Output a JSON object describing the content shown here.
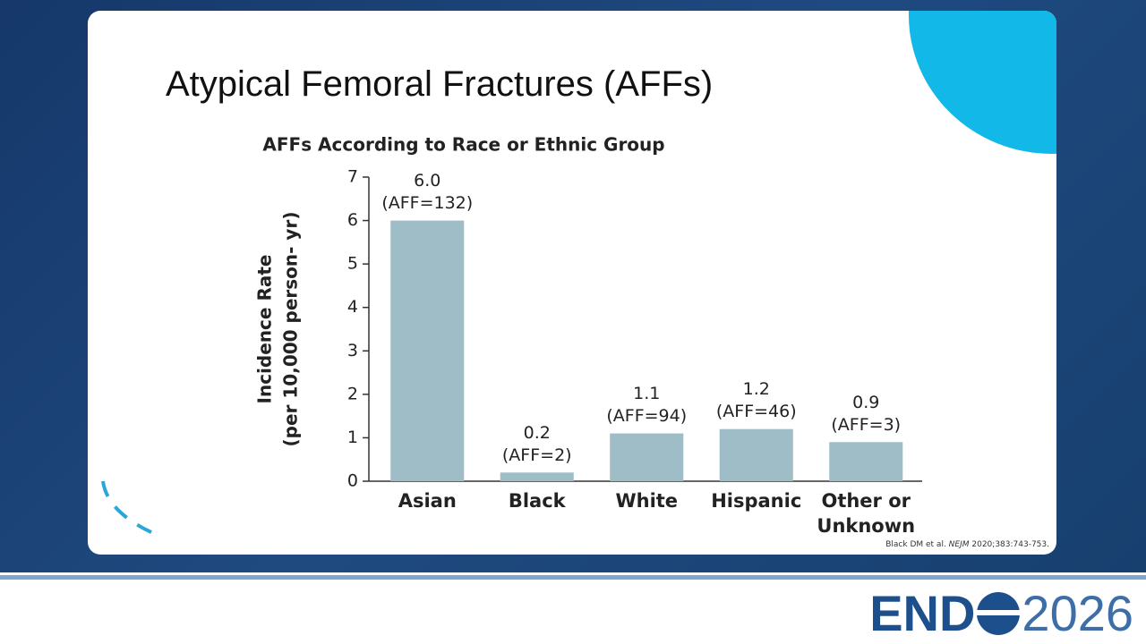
{
  "slide_title": "Atypical Femoral Fractures (AFFs)",
  "chart_data": {
    "type": "bar",
    "title": "AFFs According to Race or Ethnic Group",
    "ylabel": [
      "Incidence Rate",
      "(per 10,000 person- yr)"
    ],
    "categories": [
      "Asian",
      "Black",
      "White",
      "Hispanic",
      "Other or Unknown"
    ],
    "values": [
      6.0,
      0.2,
      1.1,
      1.2,
      0.9
    ],
    "value_labels": [
      "6.0",
      "0.2",
      "1.1",
      "1.2",
      "0.9"
    ],
    "annotations": [
      "(AFF=132)",
      "(AFF=2)",
      "(AFF=94)",
      "(AFF=46)",
      "(AFF=3)"
    ],
    "color": "#9fbdc7",
    "ylim": [
      0,
      7
    ],
    "yticks": [
      0,
      1,
      2,
      3,
      4,
      5,
      6,
      7
    ]
  },
  "citation": {
    "before": "Black DM et al. ",
    "italic": "NEJM",
    "after": " 2020;383:743-753."
  },
  "logo": {
    "left": "END",
    "right": "2026"
  }
}
